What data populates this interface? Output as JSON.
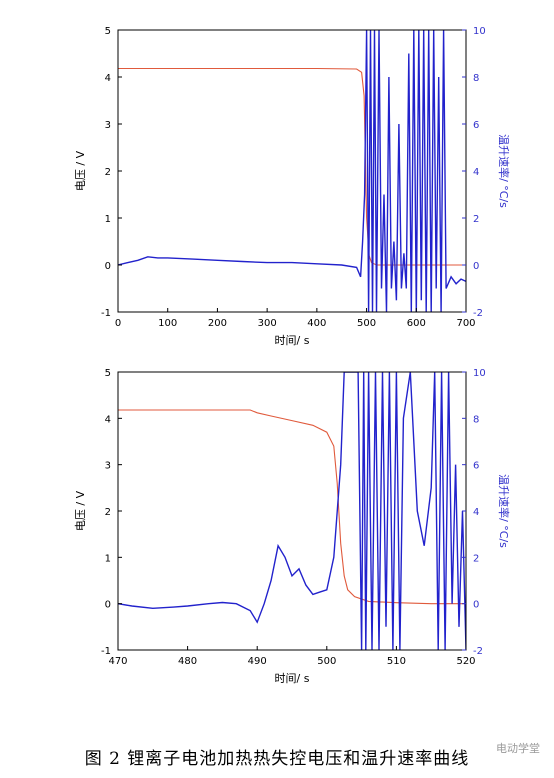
{
  "caption": "图 2   锂离子电池加热热失控电压和温升速率曲线",
  "watermark": "电动学堂",
  "colors": {
    "voltage": "#e05a3c",
    "temp_rate": "#2222cc",
    "axis": "#000000",
    "right_axis": "#3333cc"
  },
  "chart_data": [
    {
      "type": "line",
      "xlabel": "时间/ s",
      "ylabel": "电压 / V",
      "y2label": "温升速率/ °C/s",
      "xlim": [
        0,
        700
      ],
      "ylim": [
        -1,
        5
      ],
      "y2lim": [
        -2,
        10
      ],
      "xticks": [
        0,
        100,
        200,
        300,
        400,
        500,
        600,
        700
      ],
      "yticks": [
        -1,
        0,
        1,
        2,
        3,
        4,
        5
      ],
      "y2ticks": [
        -2,
        0,
        2,
        4,
        6,
        8,
        10
      ],
      "series": [
        {
          "axis": "left",
          "color": "#e05a3c",
          "x": [
            0,
            100,
            200,
            300,
            400,
            480,
            490,
            495,
            500,
            505,
            510,
            520,
            600,
            700
          ],
          "y": [
            4.18,
            4.18,
            4.18,
            4.18,
            4.18,
            4.17,
            4.1,
            3.6,
            1.0,
            0.2,
            0.05,
            0.0,
            0.0,
            0.0
          ]
        },
        {
          "axis": "right",
          "color": "#2222cc",
          "x": [
            0,
            20,
            40,
            60,
            80,
            100,
            150,
            200,
            250,
            300,
            350,
            400,
            450,
            480,
            488,
            492,
            496,
            500,
            504,
            508,
            512,
            516,
            520,
            525,
            530,
            535,
            540,
            545,
            550,
            555,
            560,
            565,
            570,
            575,
            580,
            585,
            590,
            595,
            600,
            605,
            610,
            615,
            620,
            625,
            630,
            635,
            640,
            645,
            650,
            655,
            660,
            670,
            680,
            690,
            700
          ],
          "y": [
            0.0,
            0.1,
            0.2,
            0.35,
            0.3,
            0.3,
            0.25,
            0.2,
            0.15,
            0.1,
            0.1,
            0.05,
            0.0,
            -0.1,
            -0.5,
            1.0,
            3.0,
            10,
            -2,
            10,
            -2,
            10,
            -2,
            10,
            -1,
            3,
            -2,
            8,
            -1,
            1,
            -1.5,
            6,
            -1,
            0.5,
            -1,
            9,
            -2,
            10,
            -2,
            10,
            -1.5,
            10,
            -2,
            10,
            -2,
            10,
            -1,
            8,
            -2,
            10,
            -1,
            -0.5,
            -0.8,
            -0.6,
            -0.7
          ]
        }
      ]
    },
    {
      "type": "line",
      "xlabel": "时间/ s",
      "ylabel": "电压 / V",
      "y2label": "温升速率/ °C/s",
      "xlim": [
        470,
        520
      ],
      "ylim": [
        -1,
        5
      ],
      "y2lim": [
        -2,
        10
      ],
      "xticks": [
        470,
        480,
        490,
        500,
        510,
        520
      ],
      "yticks": [
        -1,
        0,
        1,
        2,
        3,
        4,
        5
      ],
      "y2ticks": [
        -2,
        0,
        2,
        4,
        6,
        8,
        10
      ],
      "series": [
        {
          "axis": "left",
          "color": "#e05a3c",
          "x": [
            470,
            480,
            489,
            490,
            492,
            495,
            498,
            500,
            501,
            501.5,
            502,
            502.5,
            503,
            504,
            506,
            510,
            515,
            520
          ],
          "y": [
            4.18,
            4.18,
            4.18,
            4.12,
            4.05,
            3.95,
            3.85,
            3.7,
            3.4,
            2.6,
            1.3,
            0.6,
            0.3,
            0.15,
            0.05,
            0.02,
            0.0,
            0.0
          ]
        },
        {
          "axis": "right",
          "color": "#2222cc",
          "x": [
            470,
            472,
            475,
            478,
            480,
            483,
            485,
            487,
            489,
            490,
            491,
            492,
            493,
            494,
            495,
            496,
            497,
            498,
            499,
            500,
            501,
            502,
            502.5,
            503,
            503.5,
            504,
            504.5,
            505,
            505.3,
            505.6,
            506,
            506.5,
            507,
            507.5,
            508,
            508.5,
            509,
            509.5,
            510,
            510.5,
            511,
            512,
            513,
            514,
            515,
            515.5,
            516,
            516.5,
            517,
            517.5,
            518,
            518.5,
            519,
            519.5,
            520
          ],
          "y": [
            0.0,
            -0.1,
            -0.2,
            -0.15,
            -0.1,
            0.0,
            0.05,
            0.0,
            -0.3,
            -0.8,
            0.0,
            1.0,
            2.5,
            2.0,
            1.2,
            1.5,
            0.8,
            0.4,
            0.5,
            0.6,
            2.0,
            6.0,
            10,
            10,
            10,
            10,
            10,
            -2,
            10,
            -2,
            10,
            -2,
            10,
            -2,
            10,
            -1,
            10,
            -2,
            10,
            -2,
            8,
            10,
            4,
            2.5,
            5,
            10,
            -2,
            10,
            -2,
            10,
            0,
            6,
            -1,
            4,
            -2
          ]
        }
      ]
    }
  ]
}
